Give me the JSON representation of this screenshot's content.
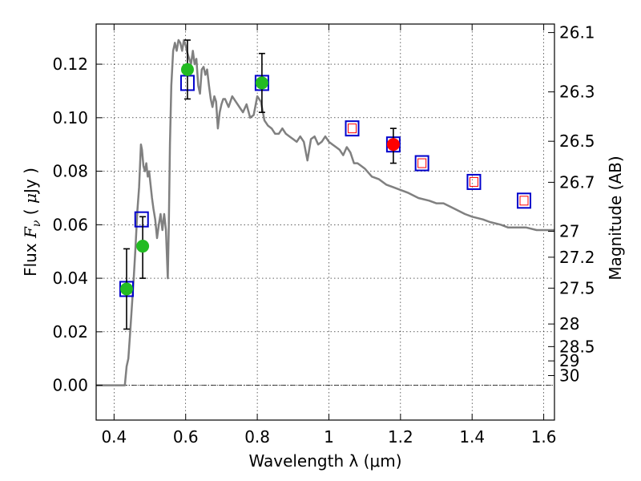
{
  "chart_data": {
    "type": "scatter",
    "xlabel": "Wavelength  λ (μm)",
    "ylabel_parts": [
      "Flux  ",
      "F",
      "ν",
      "  (  ",
      "μ",
      "Jy  )"
    ],
    "ylabel_right": "Magnitude (AB)",
    "xlim": [
      0.35,
      1.63
    ],
    "ylim": [
      -0.013,
      0.135
    ],
    "grid": true,
    "x_ticks": [
      0.4,
      0.6,
      0.8,
      1.0,
      1.2,
      1.4,
      1.6
    ],
    "x_tick_labels": [
      "0.4",
      "0.6",
      "0.8",
      "1",
      "1.2",
      "1.4",
      "1.6"
    ],
    "y_ticks": [
      0.0,
      0.02,
      0.04,
      0.06,
      0.08,
      0.1,
      0.12
    ],
    "y_tick_labels": [
      "0.00",
      "0.02",
      "0.04",
      "0.06",
      "0.08",
      "0.10",
      "0.12"
    ],
    "mag_ticks": [
      26.1,
      26.3,
      26.5,
      26.7,
      27,
      27.2,
      27.5,
      28,
      28.5,
      29,
      30
    ],
    "mag_tick_labels": [
      "26.1",
      "26.3",
      "26.5",
      "26.7",
      "27",
      "27.2",
      "27.5",
      "28",
      "28.5",
      "29",
      "30"
    ],
    "colors": {
      "model": "#808080",
      "observed": "#22bb22",
      "nir_observed": "#ff0000",
      "model_box": "#0000cc",
      "nir_box_inner": "#ff0000",
      "errorbar": "#000000"
    },
    "series": [
      {
        "type": "line",
        "x": [
          0.35,
          0.43,
          0.435,
          0.44,
          0.445,
          0.45,
          0.455,
          0.46,
          0.465,
          0.47,
          0.475,
          0.478,
          0.482,
          0.486,
          0.49,
          0.494,
          0.498,
          0.502,
          0.506,
          0.51,
          0.515,
          0.52,
          0.525,
          0.53,
          0.535,
          0.54,
          0.545,
          0.55,
          0.553,
          0.556,
          0.56,
          0.565,
          0.57,
          0.575,
          0.58,
          0.585,
          0.59,
          0.595,
          0.6,
          0.605,
          0.61,
          0.615,
          0.62,
          0.625,
          0.63,
          0.635,
          0.64,
          0.645,
          0.65,
          0.655,
          0.66,
          0.665,
          0.67,
          0.675,
          0.68,
          0.685,
          0.69,
          0.695,
          0.7,
          0.705,
          0.71,
          0.72,
          0.73,
          0.74,
          0.75,
          0.76,
          0.77,
          0.78,
          0.79,
          0.8,
          0.81,
          0.82,
          0.83,
          0.84,
          0.85,
          0.86,
          0.87,
          0.88,
          0.89,
          0.9,
          0.91,
          0.92,
          0.93,
          0.94,
          0.95,
          0.96,
          0.97,
          0.98,
          0.99,
          1.0,
          1.01,
          1.02,
          1.03,
          1.04,
          1.05,
          1.06,
          1.07,
          1.08,
          1.09,
          1.1,
          1.12,
          1.14,
          1.16,
          1.18,
          1.2,
          1.22,
          1.25,
          1.28,
          1.3,
          1.32,
          1.35,
          1.38,
          1.4,
          1.43,
          1.45,
          1.48,
          1.5,
          1.53,
          1.55,
          1.58,
          1.6,
          1.63
        ],
        "y": [
          0.0,
          0.0,
          0.007,
          0.01,
          0.02,
          0.03,
          0.04,
          0.052,
          0.065,
          0.074,
          0.09,
          0.088,
          0.082,
          0.08,
          0.083,
          0.078,
          0.08,
          0.075,
          0.07,
          0.066,
          0.062,
          0.055,
          0.06,
          0.064,
          0.058,
          0.064,
          0.058,
          0.04,
          0.06,
          0.09,
          0.112,
          0.125,
          0.128,
          0.125,
          0.129,
          0.128,
          0.125,
          0.129,
          0.127,
          0.124,
          0.122,
          0.12,
          0.125,
          0.12,
          0.122,
          0.112,
          0.109,
          0.118,
          0.119,
          0.116,
          0.118,
          0.112,
          0.107,
          0.104,
          0.108,
          0.106,
          0.096,
          0.102,
          0.105,
          0.107,
          0.107,
          0.104,
          0.108,
          0.106,
          0.104,
          0.102,
          0.105,
          0.1,
          0.101,
          0.108,
          0.106,
          0.099,
          0.097,
          0.096,
          0.094,
          0.094,
          0.096,
          0.094,
          0.093,
          0.092,
          0.091,
          0.093,
          0.091,
          0.084,
          0.092,
          0.093,
          0.09,
          0.091,
          0.093,
          0.091,
          0.09,
          0.089,
          0.088,
          0.086,
          0.089,
          0.087,
          0.083,
          0.083,
          0.082,
          0.081,
          0.078,
          0.077,
          0.075,
          0.074,
          0.073,
          0.072,
          0.07,
          0.069,
          0.068,
          0.068,
          0.066,
          0.064,
          0.063,
          0.062,
          0.061,
          0.06,
          0.059,
          0.059,
          0.059,
          0.058,
          0.058,
          0.058
        ]
      },
      {
        "type": "model_boxes",
        "x": [
          0.435,
          0.477,
          0.605,
          0.813,
          1.065,
          1.18,
          1.26,
          1.405,
          1.545
        ],
        "y": [
          0.036,
          0.062,
          0.113,
          0.113,
          0.096,
          0.09,
          0.083,
          0.076,
          0.069
        ],
        "nir_from_index": 4
      },
      {
        "type": "points_with_errors",
        "x": [
          0.435,
          0.48,
          0.605,
          0.813
        ],
        "y": [
          0.036,
          0.052,
          0.118,
          0.113
        ],
        "yerr_low": [
          0.021,
          0.04,
          0.107,
          0.102
        ],
        "yerr_high": [
          0.051,
          0.063,
          0.129,
          0.124
        ],
        "color": "green"
      },
      {
        "type": "points_with_errors",
        "x": [
          1.18
        ],
        "y": [
          0.09
        ],
        "yerr_low": [
          0.083
        ],
        "yerr_high": [
          0.096
        ],
        "color": "red"
      }
    ]
  }
}
